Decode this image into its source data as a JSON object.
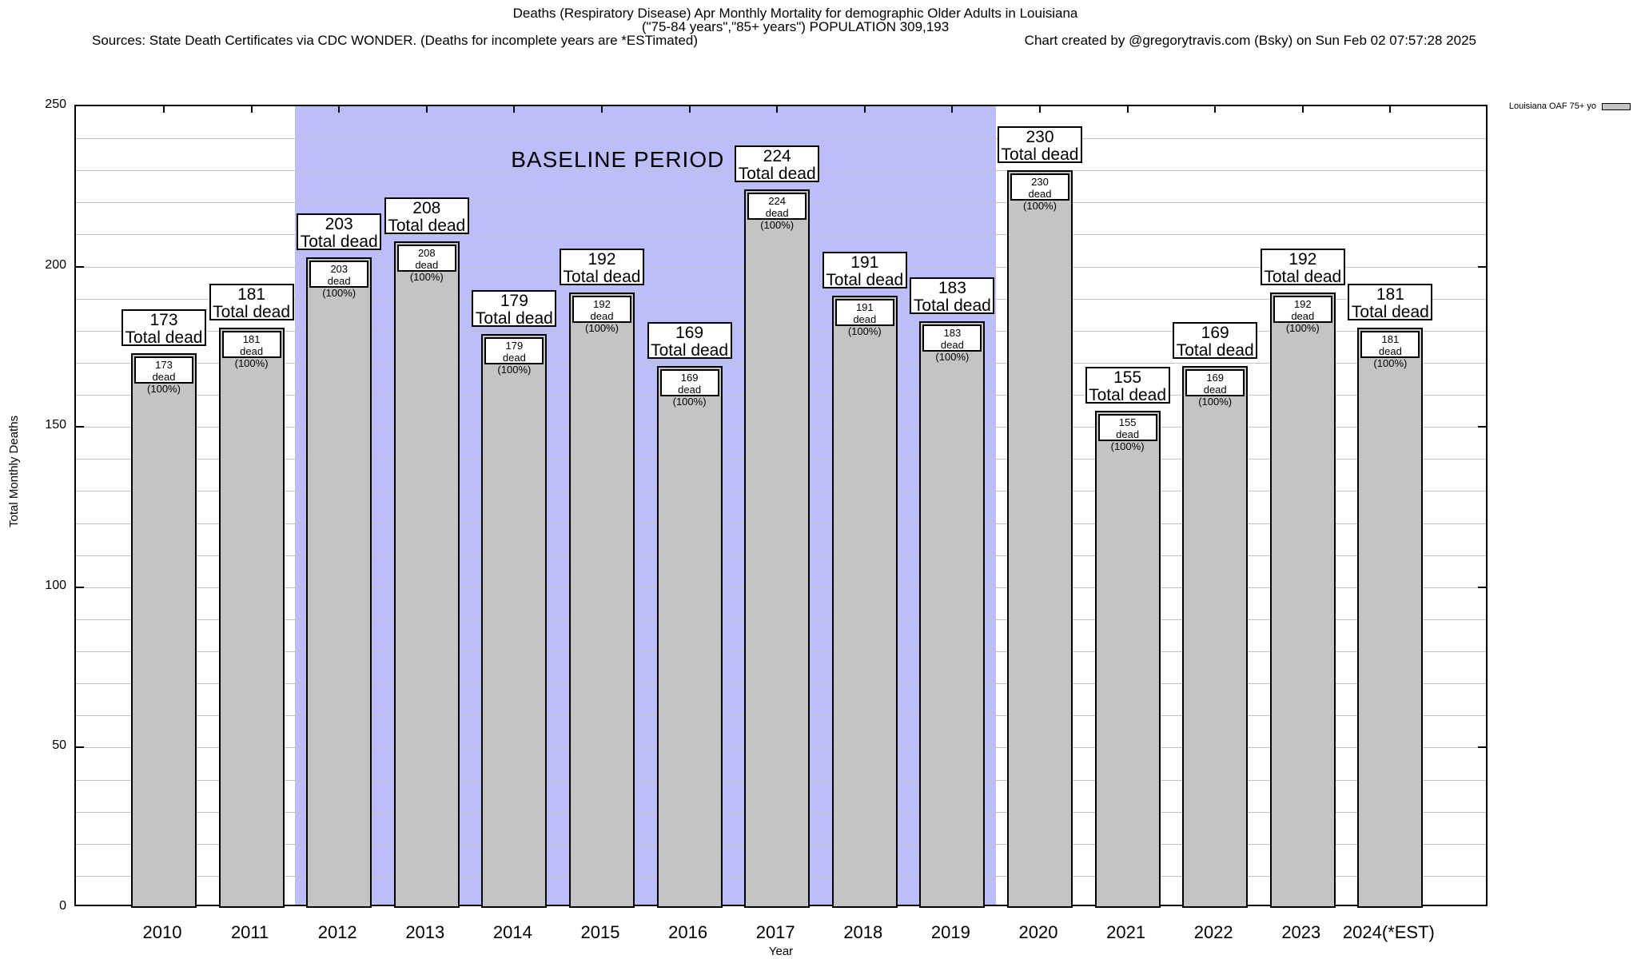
{
  "header": {
    "title_line1": "Deaths (Respiratory Disease) Apr Monthly Mortality for demographic Older Adults in Louisiana",
    "title_line2": "(\"75-84 years\",\"85+ years\") POPULATION 309,193",
    "sources_left": "Sources: State Death Certificates via CDC WONDER. (Deaths for incomplete years are *ESTimated)",
    "credit_right": "Chart created by @gregorytravis.com (Bsky) on Sun Feb 02 07:57:28 2025"
  },
  "legend": {
    "label": "Louisiana OAF 75+ yo",
    "swatch_color": "#c4c4c4"
  },
  "labels": {
    "outer_suffix": "Total dead",
    "inner_suffix": "dead (100%)",
    "baseline_text": "BASELINE PERIOD"
  },
  "colors": {
    "bar_fill": "#c4c4c4",
    "baseline_fill": "#bdbdfa",
    "gridline": "#c3c3c3"
  },
  "chart_data": {
    "type": "bar",
    "title": "Deaths (Respiratory Disease) Apr Monthly Mortality for demographic Older Adults in Louisiana (\"75-84 years\",\"85+ years\") POPULATION 309,193",
    "xlabel": "Year",
    "ylabel": "Total Monthly Deaths",
    "ylim": [
      0,
      250
    ],
    "ytick_step": 50,
    "minor_grid_step": 10,
    "grid": true,
    "legend_position": "top-right-outside",
    "categories": [
      "2010",
      "2011",
      "2012",
      "2013",
      "2014",
      "2015",
      "2016",
      "2017",
      "2018",
      "2019",
      "2020",
      "2021",
      "2022",
      "2023",
      "2024(*EST)"
    ],
    "series": [
      {
        "name": "Louisiana OAF 75+ yo",
        "values": [
          173,
          181,
          203,
          208,
          179,
          192,
          169,
          224,
          191,
          183,
          230,
          155,
          169,
          192,
          181
        ]
      }
    ],
    "bar_annotations": {
      "outer_format": "{value} Total dead",
      "inner_format": "{value} dead (100%)"
    },
    "baseline_period": {
      "from": "2012",
      "to": "2019",
      "label": "BASELINE PERIOD"
    }
  }
}
